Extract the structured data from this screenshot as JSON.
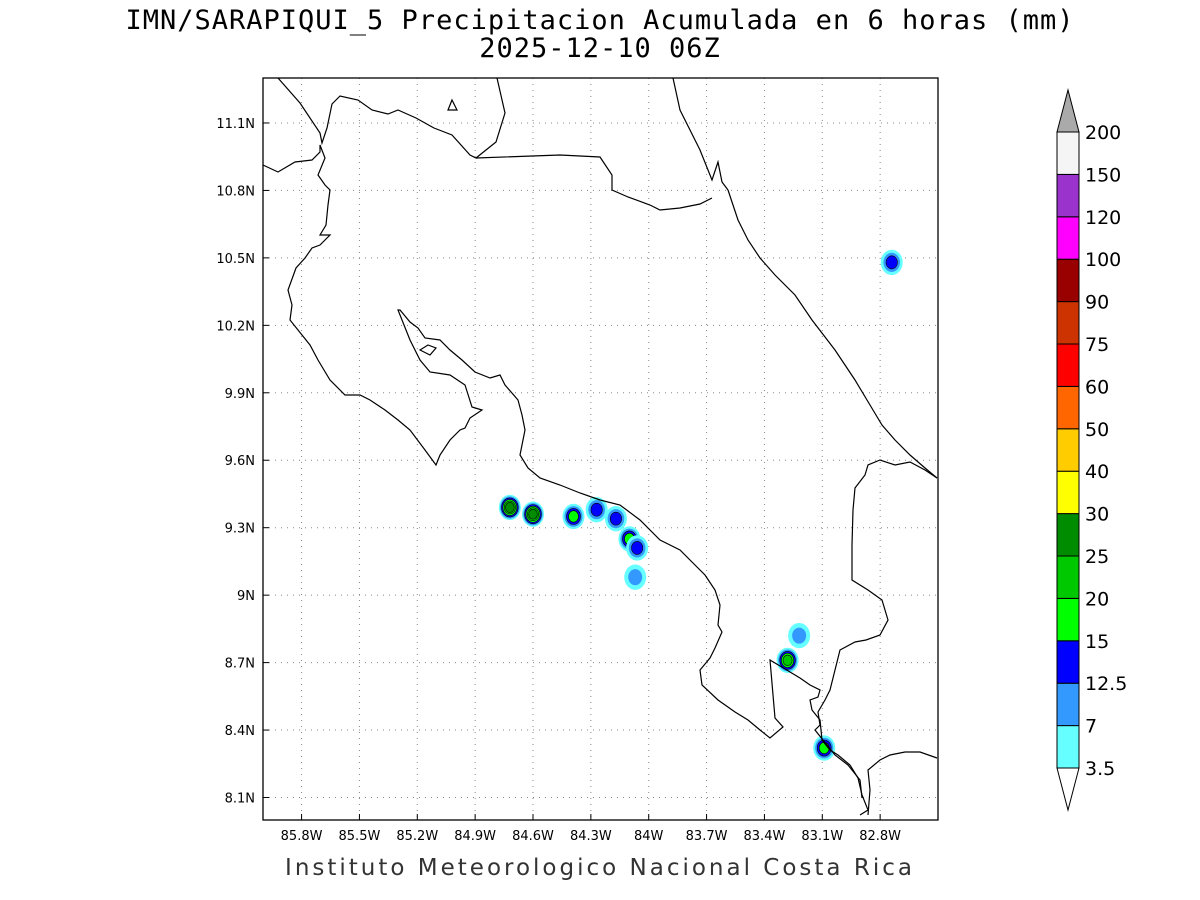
{
  "title": {
    "line1": "IMN/SARAPIQUI_5 Precipitacion Acumulada en 6 horas (mm)",
    "line2": "2025-12-10 06Z"
  },
  "footer": "Instituto Meteorologico Nacional Costa Rica",
  "map": {
    "lon_range": [
      -86.0,
      -82.5
    ],
    "lat_range": [
      8.0,
      11.3
    ],
    "lon_ticks": [
      "85.8W",
      "85.5W",
      "85.2W",
      "84.9W",
      "84.6W",
      "84.3W",
      "84W",
      "83.7W",
      "83.4W",
      "83.1W",
      "82.8W"
    ],
    "lat_ticks": [
      "11.1N",
      "10.8N",
      "10.5N",
      "10.2N",
      "9.9N",
      "9.6N",
      "9.3N",
      "9N",
      "8.7N",
      "8.4N",
      "8.1N"
    ],
    "grid": "dotted",
    "precip_cells": [
      {
        "lon": -84.72,
        "lat": 9.39,
        "max_mm": 25
      },
      {
        "lon": -84.6,
        "lat": 9.36,
        "max_mm": 25
      },
      {
        "lon": -84.39,
        "lat": 9.35,
        "max_mm": 15
      },
      {
        "lon": -84.27,
        "lat": 9.38,
        "max_mm": 12.5
      },
      {
        "lon": -84.17,
        "lat": 9.34,
        "max_mm": 12.5
      },
      {
        "lon": -84.1,
        "lat": 9.25,
        "max_mm": 15
      },
      {
        "lon": -84.06,
        "lat": 9.21,
        "max_mm": 12.5
      },
      {
        "lon": -84.07,
        "lat": 9.08,
        "max_mm": 7
      },
      {
        "lon": -83.28,
        "lat": 8.71,
        "max_mm": 20
      },
      {
        "lon": -83.22,
        "lat": 8.82,
        "max_mm": 7
      },
      {
        "lon": -83.09,
        "lat": 8.32,
        "max_mm": 15
      },
      {
        "lon": -82.74,
        "lat": 10.48,
        "max_mm": 12.5
      }
    ]
  },
  "colorbar": {
    "levels": [
      "3.5",
      "7",
      "12.5",
      "15",
      "20",
      "25",
      "30",
      "40",
      "50",
      "60",
      "75",
      "90",
      "100",
      "120",
      "150",
      "200"
    ],
    "colors": [
      "#66ffff",
      "#3399ff",
      "#0000ff",
      "#00ff00",
      "#00c800",
      "#008c00",
      "#ffff00",
      "#ffcc00",
      "#ff6600",
      "#ff0000",
      "#cc3300",
      "#990000",
      "#ff00ff",
      "#9933cc",
      "#f5f5f5",
      "#aaaaaa"
    ]
  }
}
